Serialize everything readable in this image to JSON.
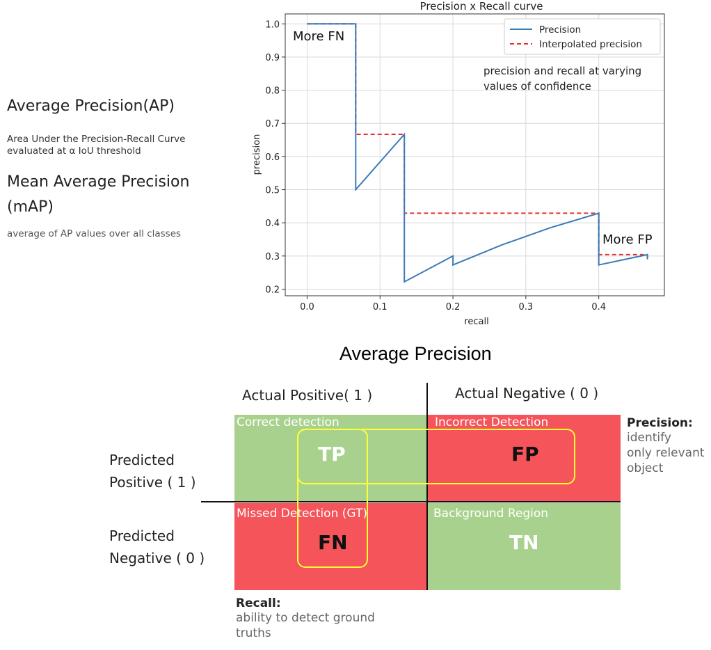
{
  "left_panel": {
    "ap_heading": "Average Precision(AP)",
    "ap_desc_line1": "Area Under the Precision-Recall Curve",
    "ap_desc_line2": "evaluated at α IoU threshold",
    "map_heading_line1": "Mean Average Precision",
    "map_heading_line2": "(mAP)",
    "map_desc": "average of AP values over all classes"
  },
  "chart_data": {
    "type": "line",
    "title": "Precision x Recall curve",
    "xlabel": "recall",
    "ylabel": "precision",
    "xlim": [
      -0.03,
      0.49
    ],
    "ylim": [
      0.18,
      1.03
    ],
    "xticks": [
      "0.0",
      "0.1",
      "0.2",
      "0.3",
      "0.4"
    ],
    "yticks": [
      "0.2",
      "0.3",
      "0.4",
      "0.5",
      "0.6",
      "0.7",
      "0.8",
      "0.9",
      "1.0"
    ],
    "grid": true,
    "legend": "top-right",
    "series": [
      {
        "name": "Precision",
        "color": "#3b7ab8",
        "style": "solid",
        "points": [
          [
            0.0,
            1.0
          ],
          [
            0.0667,
            1.0
          ],
          [
            0.0667,
            0.5
          ],
          [
            0.1333,
            0.667
          ],
          [
            0.1333,
            0.222
          ],
          [
            0.2,
            0.3
          ],
          [
            0.2,
            0.273
          ],
          [
            0.2667,
            0.333
          ],
          [
            0.3333,
            0.385
          ],
          [
            0.4,
            0.429
          ],
          [
            0.4,
            0.273
          ],
          [
            0.4667,
            0.304
          ],
          [
            0.4667,
            0.29
          ]
        ]
      },
      {
        "name": "Interpolated precision",
        "color": "#e83030",
        "style": "dashed",
        "points": [
          [
            0.0,
            1.0
          ],
          [
            0.0667,
            1.0
          ],
          [
            0.0667,
            0.667
          ],
          [
            0.1333,
            0.667
          ],
          [
            0.1333,
            0.429
          ],
          [
            0.4,
            0.429
          ],
          [
            0.4,
            0.304
          ],
          [
            0.4667,
            0.304
          ],
          [
            0.4667,
            0.29
          ]
        ]
      }
    ],
    "annotations": {
      "more_fn": "More FN",
      "more_fp": "More FP",
      "note_line1": "precision and recall at varying",
      "note_line2": "values of confidence"
    }
  },
  "matrix": {
    "title": "Average Precision",
    "col_actual_positive": "Actual Positive( 1 )",
    "col_actual_negative": "Actual Negative ( 0 )",
    "row_predicted_positive_line1": "Predicted",
    "row_predicted_positive_line2": "Positive ( 1 )",
    "row_predicted_negative_line1": "Predicted",
    "row_predicted_negative_line2": "Negative ( 0 )",
    "tp_title": "Correct detection",
    "tp_label": "TP",
    "fp_title": "Incorrect Detection",
    "fp_label": "FP",
    "fn_title": "Missed Detection (GT)",
    "fn_label": "FN",
    "tn_title": "Background Region",
    "tn_label": "TN",
    "precision_heading": "Precision:",
    "precision_line1": "identify",
    "precision_line2": "only relevant",
    "precision_line3": "object",
    "recall_heading": "Recall:",
    "recall_line1": "ability to detect ground",
    "recall_line2": "truths",
    "colors": {
      "green": "#a9d18e",
      "red": "#f4545a",
      "highlight": "#ffff33"
    }
  }
}
